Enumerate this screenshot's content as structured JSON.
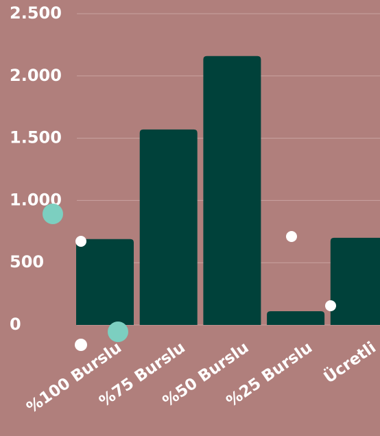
{
  "chart_data": {
    "type": "bar",
    "categories": [
      "%100 Burslu",
      "%75 Burslu",
      "%50 Burslu",
      "%25 Burslu",
      "Ücretli"
    ],
    "values": [
      690,
      1570,
      2160,
      110,
      700
    ],
    "color": "#00413a",
    "ylim": [
      0,
      2500
    ],
    "yticks": [
      0,
      500,
      {
        "value": 1000,
        "label": "1.000"
      },
      {
        "value": 1500,
        "label": "1.500"
      },
      {
        "value": 2000,
        "label": "2.000"
      },
      {
        "value": 2500,
        "label": "2.500"
      }
    ],
    "grid": true
  }
}
